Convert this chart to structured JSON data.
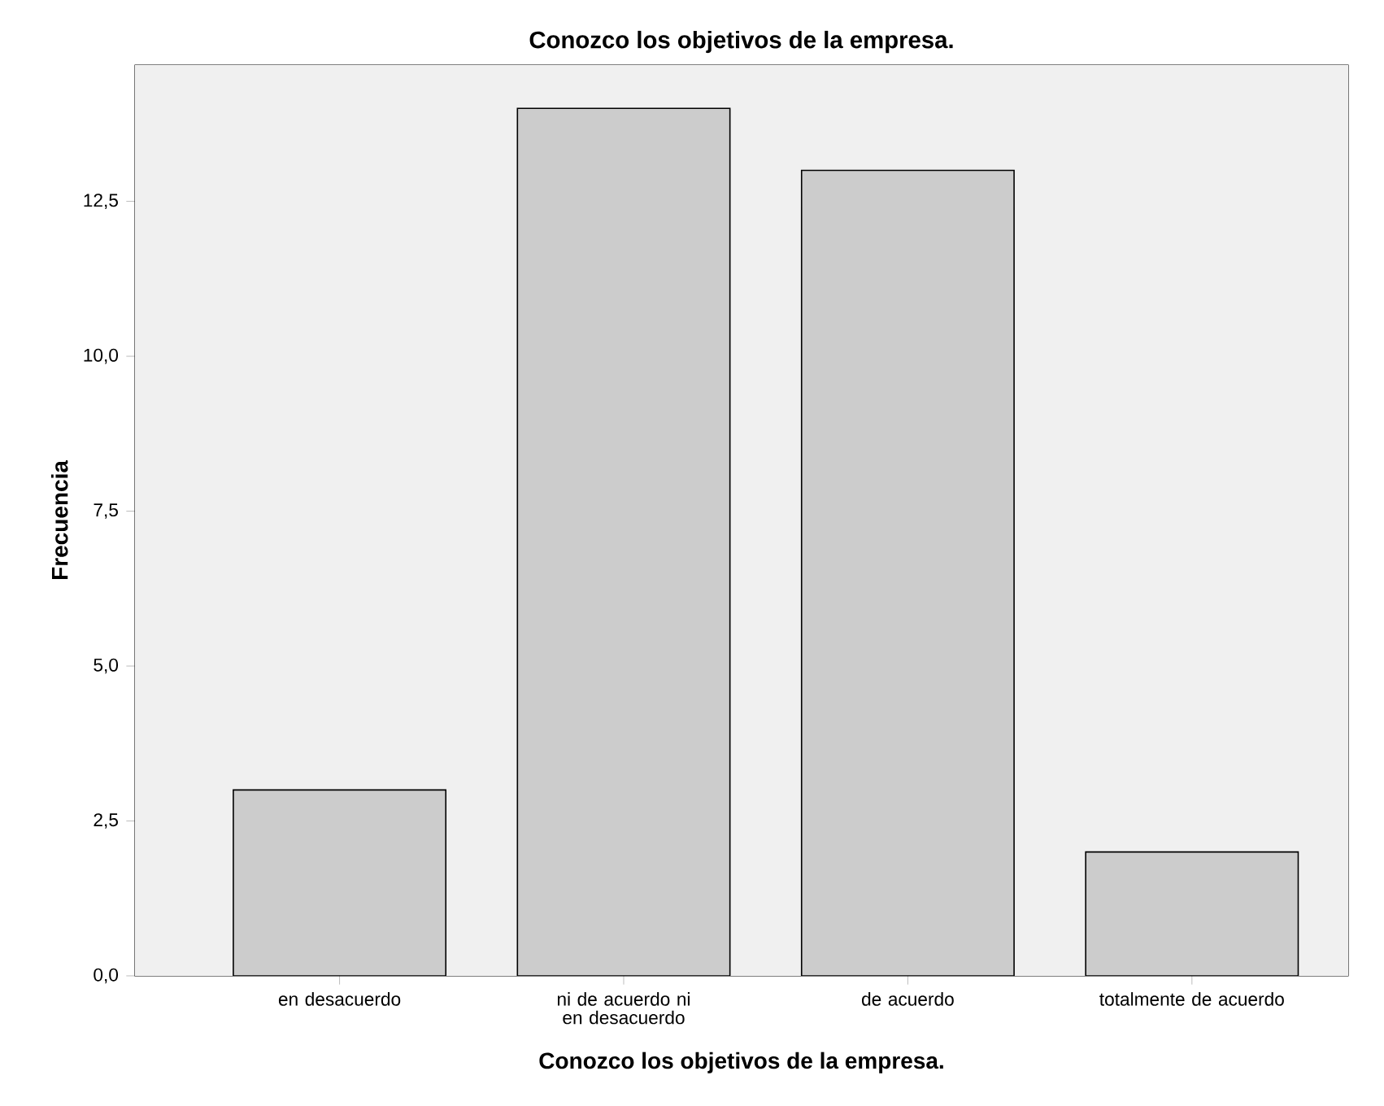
{
  "chart_data": {
    "type": "bar",
    "title": "Conozco los objetivos de la empresa.",
    "xlabel": "Conozco los objetivos de la empresa.",
    "ylabel": "Frecuencia",
    "categories": [
      "en desacuerdo",
      "ni de acuerdo ni en desacuerdo",
      "de acuerdo",
      "totalmente de acuerdo"
    ],
    "values": [
      3,
      14,
      13,
      2
    ],
    "color": "#cccccc",
    "ylim": [
      0,
      14.7
    ],
    "yticks": [
      {
        "value": 0,
        "label": "0,0"
      },
      {
        "value": 2.5,
        "label": "2,5"
      },
      {
        "value": 5,
        "label": "5,0"
      },
      {
        "value": 7.5,
        "label": "7,5"
      },
      {
        "value": 10,
        "label": "10,0"
      },
      {
        "value": 12.5,
        "label": "12,5"
      }
    ],
    "grid": false
  }
}
